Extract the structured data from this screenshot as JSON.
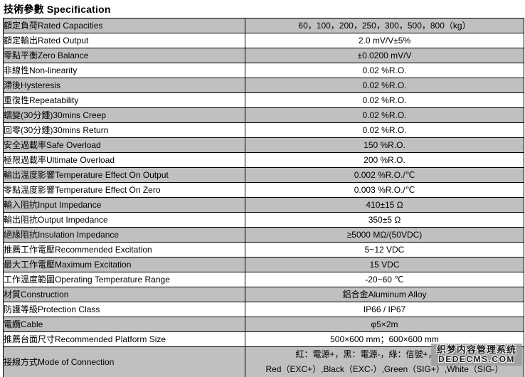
{
  "title": "技術參數 Specification",
  "colors": {
    "row_shade": "#c0c0c0",
    "border": "#000000",
    "background": "#ffffff"
  },
  "watermark": {
    "line1": "织梦内容管理系统",
    "line2": "DEDECMS.COM"
  },
  "table": {
    "rows": [
      {
        "label": "額定負荷Rated Capacities",
        "value": "60，100，200，250，300，500，800（kg）"
      },
      {
        "label": "額定輸出Rated Output",
        "value": "2.0 mV/V±5%"
      },
      {
        "label": "零點平衡Zero Balance",
        "value": "±0.0200 mV/V"
      },
      {
        "label": "非線性Non-linearity",
        "value": "0.02 %R.O."
      },
      {
        "label": "滯後Hysteresis",
        "value": "0.02 %R.O."
      },
      {
        "label": "重復性Repeatability",
        "value": "0.02 %R.O."
      },
      {
        "label": "蠕變(30分鍾)30mins Creep",
        "value": "0.02 %R.O."
      },
      {
        "label": "回零(30分鍾)30mins Return",
        "value": "0.02 %R.O."
      },
      {
        "label": "安全過載率Safe Overload",
        "value": "150 %R.O."
      },
      {
        "label": "極限過載率Ultimate Overload",
        "value": "200 %R.O."
      },
      {
        "label": "輸出溫度影響Temperature Effect On Output",
        "value": "0.002 %R.O./℃"
      },
      {
        "label": "零點溫度影響Temperature Effect On Zero",
        "value": "0.003 %R.O./℃"
      },
      {
        "label": "輸入阻抗Input Impedance",
        "value": "410±15 Ω"
      },
      {
        "label": "輸出阻抗Output Impedance",
        "value": "350±5 Ω"
      },
      {
        "label": "絕緣阻抗Insulation Impedance",
        "value": "≥5000 MΩ/(50VDC)"
      },
      {
        "label": "推薦工作電壓Recommended Excitation",
        "value": "5~12 VDC"
      },
      {
        "label": "最大工作電壓Maximum Excitation",
        "value": "15 VDC"
      },
      {
        "label": "工作溫度範圍Operating Temperature Range",
        "value": "-20~60 ℃"
      },
      {
        "label": "材質Construction",
        "value": "鋁合金Aluminum Alloy"
      },
      {
        "label": "防護等級Protection Class",
        "value": "IP66 / IP67"
      },
      {
        "label": "電纜Cable",
        "value": "φ5×2m"
      },
      {
        "label": "推薦台面尺寸Recommended Platform Size",
        "value": "500×600 mm；600×600 mm"
      },
      {
        "label": "接線方式Mode of Connection",
        "value_lines": [
          "紅：電源+，黑：電源-，綠：信號+，白：信號-",
          "Red（EXC+）,Black（EXC-）,Green（SIG+）,White（SIG-）"
        ]
      }
    ]
  }
}
